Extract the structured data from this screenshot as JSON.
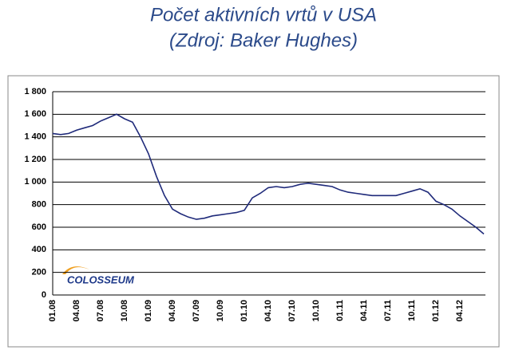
{
  "chart_data": {
    "type": "line",
    "title": "Počet aktivních vrtů v USA",
    "subtitle": "(Zdroj: Baker Hughes)",
    "categories": [
      "01.08",
      null,
      null,
      "04.08",
      null,
      null,
      "07.08",
      null,
      null,
      "10.08",
      null,
      null,
      "01.09",
      null,
      null,
      "04.09",
      null,
      null,
      "07.09",
      null,
      null,
      "10.09",
      null,
      null,
      "01.10",
      null,
      null,
      "04.10",
      null,
      null,
      "07.10",
      null,
      null,
      "10.10",
      null,
      null,
      "01.11",
      null,
      null,
      "04.11",
      null,
      null,
      "07.11",
      null,
      null,
      "10.11",
      null,
      null,
      "01.12",
      null,
      null,
      "04.12",
      null,
      null,
      null
    ],
    "values": [
      1430,
      1420,
      1430,
      1460,
      1480,
      1500,
      1540,
      1570,
      1600,
      1560,
      1530,
      1400,
      1250,
      1050,
      880,
      760,
      720,
      690,
      670,
      680,
      700,
      710,
      720,
      730,
      750,
      860,
      900,
      950,
      960,
      950,
      960,
      980,
      990,
      980,
      970,
      960,
      930,
      910,
      900,
      890,
      880,
      880,
      880,
      880,
      900,
      920,
      940,
      910,
      830,
      800,
      760,
      700,
      650,
      600,
      540
    ],
    "color": "#1f2a7a",
    "ylim": [
      0,
      1800
    ],
    "yticks": [
      0,
      200,
      400,
      600,
      800,
      {
        "value": 1000,
        "label": "1 000"
      },
      {
        "value": 1200,
        "label": "1 200"
      },
      {
        "value": 1400,
        "label": "1 400"
      },
      {
        "value": 1600,
        "label": "1 600"
      },
      {
        "value": 1800,
        "label": "1 800"
      }
    ],
    "grid": true
  },
  "logo": "COLOSSEUM"
}
